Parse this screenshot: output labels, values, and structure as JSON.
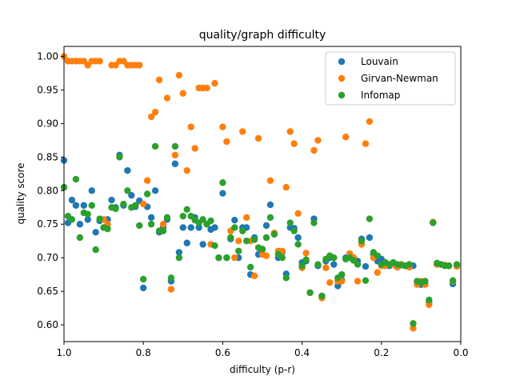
{
  "chart_data": {
    "type": "scatter",
    "title": "quality/graph difficulty",
    "xlabel": "difficulty (p-r)",
    "ylabel": "quality score",
    "xlim": [
      1.0,
      0.0
    ],
    "ylim": [
      0.575,
      1.015
    ],
    "x_ticks": [
      "1.0",
      "0.8",
      "0.6",
      "0.4",
      "0.2",
      "0.0"
    ],
    "x_tick_values": [
      1.0,
      0.8,
      0.6,
      0.4,
      0.2,
      0.0
    ],
    "y_ticks": [
      "0.60",
      "0.65",
      "0.70",
      "0.75",
      "0.80",
      "0.85",
      "0.90",
      "0.95",
      "1.00"
    ],
    "y_tick_values": [
      0.6,
      0.65,
      0.7,
      0.75,
      0.8,
      0.85,
      0.9,
      0.95,
      1.0
    ],
    "grid": false,
    "legend_position": "top-right",
    "series": [
      {
        "name": "Louvain",
        "color": "#1f77b4",
        "points": [
          [
            1.0,
            0.845
          ],
          [
            0.99,
            0.752
          ],
          [
            0.98,
            0.786
          ],
          [
            0.97,
            0.778
          ],
          [
            0.96,
            0.75
          ],
          [
            0.95,
            0.778
          ],
          [
            0.94,
            0.757
          ],
          [
            0.93,
            0.8
          ],
          [
            0.92,
            0.738
          ],
          [
            0.91,
            0.755
          ],
          [
            0.9,
            0.745
          ],
          [
            0.89,
            0.757
          ],
          [
            0.88,
            0.786
          ],
          [
            0.87,
            0.775
          ],
          [
            0.86,
            0.853
          ],
          [
            0.85,
            0.778
          ],
          [
            0.84,
            0.83
          ],
          [
            0.83,
            0.793
          ],
          [
            0.82,
            0.776
          ],
          [
            0.81,
            0.785
          ],
          [
            0.8,
            0.655
          ],
          [
            0.79,
            0.776
          ],
          [
            0.78,
            0.76
          ],
          [
            0.77,
            0.8
          ],
          [
            0.76,
            0.738
          ],
          [
            0.75,
            0.745
          ],
          [
            0.74,
            0.757
          ],
          [
            0.73,
            0.665
          ],
          [
            0.72,
            0.84
          ],
          [
            0.71,
            0.708
          ],
          [
            0.7,
            0.745
          ],
          [
            0.69,
            0.722
          ],
          [
            0.68,
            0.745
          ],
          [
            0.67,
            0.76
          ],
          [
            0.66,
            0.745
          ],
          [
            0.65,
            0.72
          ],
          [
            0.64,
            0.75
          ],
          [
            0.63,
            0.742
          ],
          [
            0.62,
            0.745
          ],
          [
            0.61,
            0.7
          ],
          [
            0.6,
            0.796
          ],
          [
            0.59,
            0.7
          ],
          [
            0.58,
            0.728
          ],
          [
            0.57,
            0.756
          ],
          [
            0.56,
            0.7
          ],
          [
            0.55,
            0.745
          ],
          [
            0.54,
            0.745
          ],
          [
            0.53,
            0.675
          ],
          [
            0.52,
            0.73
          ],
          [
            0.51,
            0.705
          ],
          [
            0.5,
            0.712
          ],
          [
            0.49,
            0.748
          ],
          [
            0.48,
            0.779
          ],
          [
            0.47,
            0.735
          ],
          [
            0.46,
            0.7
          ],
          [
            0.45,
            0.708
          ],
          [
            0.44,
            0.676
          ],
          [
            0.43,
            0.745
          ],
          [
            0.42,
            0.744
          ],
          [
            0.41,
            0.73
          ],
          [
            0.4,
            0.693
          ],
          [
            0.39,
            0.695
          ],
          [
            0.38,
            0.648
          ],
          [
            0.37,
            0.758
          ],
          [
            0.36,
            0.688
          ],
          [
            0.35,
            0.643
          ],
          [
            0.34,
            0.695
          ],
          [
            0.33,
            0.7
          ],
          [
            0.32,
            0.69
          ],
          [
            0.31,
            0.658
          ],
          [
            0.3,
            0.667
          ],
          [
            0.29,
            0.7
          ],
          [
            0.28,
            0.706
          ],
          [
            0.27,
            0.7
          ],
          [
            0.26,
            0.695
          ],
          [
            0.25,
            0.728
          ],
          [
            0.24,
            0.687
          ],
          [
            0.23,
            0.73
          ],
          [
            0.22,
            0.705
          ],
          [
            0.21,
            0.695
          ],
          [
            0.2,
            0.698
          ],
          [
            0.19,
            0.688
          ],
          [
            0.18,
            0.688
          ],
          [
            0.17,
            0.69
          ],
          [
            0.16,
            0.686
          ],
          [
            0.15,
            0.69
          ],
          [
            0.14,
            0.688
          ],
          [
            0.13,
            0.686
          ],
          [
            0.12,
            0.688
          ],
          [
            0.11,
            0.665
          ],
          [
            0.1,
            0.66
          ],
          [
            0.09,
            0.665
          ],
          [
            0.08,
            0.633
          ],
          [
            0.07,
            0.753
          ],
          [
            0.06,
            0.69
          ],
          [
            0.05,
            0.69
          ],
          [
            0.04,
            0.689
          ],
          [
            0.03,
            0.688
          ],
          [
            0.02,
            0.661
          ],
          [
            0.01,
            0.688
          ]
        ]
      },
      {
        "name": "Girvan-Newman",
        "color": "#ff7f0e",
        "points": [
          [
            1.0,
            1.0
          ],
          [
            0.99,
            0.993
          ],
          [
            0.98,
            0.993
          ],
          [
            0.97,
            0.993
          ],
          [
            0.96,
            0.993
          ],
          [
            0.95,
            0.993
          ],
          [
            0.94,
            0.987
          ],
          [
            0.93,
            0.993
          ],
          [
            0.92,
            0.993
          ],
          [
            0.91,
            0.993
          ],
          [
            0.9,
            0.757
          ],
          [
            0.89,
            0.75
          ],
          [
            0.88,
            0.987
          ],
          [
            0.87,
            0.987
          ],
          [
            0.86,
            0.993
          ],
          [
            0.85,
            0.993
          ],
          [
            0.84,
            0.987
          ],
          [
            0.83,
            0.987
          ],
          [
            0.82,
            0.987
          ],
          [
            0.81,
            0.987
          ],
          [
            0.8,
            0.78
          ],
          [
            0.79,
            0.815
          ],
          [
            0.78,
            0.91
          ],
          [
            0.77,
            0.917
          ],
          [
            0.76,
            0.965
          ],
          [
            0.75,
            0.75
          ],
          [
            0.74,
            0.938
          ],
          [
            0.73,
            0.653
          ],
          [
            0.72,
            0.853
          ],
          [
            0.71,
            0.972
          ],
          [
            0.7,
            0.945
          ],
          [
            0.69,
            0.83
          ],
          [
            0.68,
            0.895
          ],
          [
            0.67,
            0.863
          ],
          [
            0.66,
            0.953
          ],
          [
            0.65,
            0.953
          ],
          [
            0.64,
            0.953
          ],
          [
            0.63,
            0.72
          ],
          [
            0.62,
            0.96
          ],
          [
            0.61,
            0.7
          ],
          [
            0.6,
            0.895
          ],
          [
            0.59,
            0.873
          ],
          [
            0.58,
            0.74
          ],
          [
            0.57,
            0.7
          ],
          [
            0.56,
            0.725
          ],
          [
            0.55,
            0.888
          ],
          [
            0.54,
            0.76
          ],
          [
            0.53,
            0.725
          ],
          [
            0.52,
            0.673
          ],
          [
            0.51,
            0.878
          ],
          [
            0.5,
            0.705
          ],
          [
            0.49,
            0.703
          ],
          [
            0.48,
            0.815
          ],
          [
            0.47,
            0.737
          ],
          [
            0.46,
            0.71
          ],
          [
            0.45,
            0.71
          ],
          [
            0.44,
            0.805
          ],
          [
            0.43,
            0.888
          ],
          [
            0.42,
            0.87
          ],
          [
            0.41,
            0.766
          ],
          [
            0.4,
            0.685
          ],
          [
            0.39,
            0.707
          ],
          [
            0.38,
            0.648
          ],
          [
            0.37,
            0.86
          ],
          [
            0.36,
            0.875
          ],
          [
            0.35,
            0.64
          ],
          [
            0.34,
            0.685
          ],
          [
            0.33,
            0.663
          ],
          [
            0.32,
            0.7
          ],
          [
            0.31,
            0.665
          ],
          [
            0.3,
            0.665
          ],
          [
            0.29,
            0.88
          ],
          [
            0.28,
            0.706
          ],
          [
            0.27,
            0.7
          ],
          [
            0.26,
            0.665
          ],
          [
            0.25,
            0.72
          ],
          [
            0.24,
            0.87
          ],
          [
            0.23,
            0.903
          ],
          [
            0.22,
            0.7
          ],
          [
            0.21,
            0.678
          ],
          [
            0.2,
            0.688
          ],
          [
            0.19,
            0.688
          ],
          [
            0.18,
            0.69
          ],
          [
            0.17,
            0.69
          ],
          [
            0.16,
            0.686
          ],
          [
            0.15,
            0.69
          ],
          [
            0.14,
            0.688
          ],
          [
            0.13,
            0.686
          ],
          [
            0.12,
            0.595
          ],
          [
            0.11,
            0.66
          ],
          [
            0.1,
            0.665
          ],
          [
            0.09,
            0.66
          ],
          [
            0.08,
            0.63
          ],
          [
            0.07,
            0.753
          ],
          [
            0.06,
            0.69
          ],
          [
            0.05,
            0.69
          ],
          [
            0.04,
            0.689
          ],
          [
            0.03,
            0.688
          ],
          [
            0.02,
            0.665
          ],
          [
            0.01,
            0.687
          ]
        ]
      },
      {
        "name": "Infomap",
        "color": "#2ca02c",
        "points": [
          [
            1.0,
            0.805
          ],
          [
            0.99,
            0.762
          ],
          [
            0.98,
            0.757
          ],
          [
            0.97,
            0.817
          ],
          [
            0.96,
            0.73
          ],
          [
            0.95,
            0.767
          ],
          [
            0.94,
            0.765
          ],
          [
            0.93,
            0.778
          ],
          [
            0.92,
            0.712
          ],
          [
            0.91,
            0.758
          ],
          [
            0.9,
            0.745
          ],
          [
            0.89,
            0.743
          ],
          [
            0.88,
            0.775
          ],
          [
            0.87,
            0.773
          ],
          [
            0.86,
            0.85
          ],
          [
            0.85,
            0.78
          ],
          [
            0.84,
            0.8
          ],
          [
            0.83,
            0.775
          ],
          [
            0.82,
            0.778
          ],
          [
            0.81,
            0.748
          ],
          [
            0.8,
            0.668
          ],
          [
            0.79,
            0.795
          ],
          [
            0.78,
            0.75
          ],
          [
            0.77,
            0.866
          ],
          [
            0.76,
            0.74
          ],
          [
            0.75,
            0.74
          ],
          [
            0.74,
            0.76
          ],
          [
            0.73,
            0.67
          ],
          [
            0.72,
            0.866
          ],
          [
            0.71,
            0.7
          ],
          [
            0.7,
            0.762
          ],
          [
            0.69,
            0.772
          ],
          [
            0.68,
            0.762
          ],
          [
            0.67,
            0.756
          ],
          [
            0.66,
            0.752
          ],
          [
            0.65,
            0.757
          ],
          [
            0.64,
            0.75
          ],
          [
            0.63,
            0.755
          ],
          [
            0.62,
            0.718
          ],
          [
            0.61,
            0.7
          ],
          [
            0.6,
            0.812
          ],
          [
            0.59,
            0.7
          ],
          [
            0.58,
            0.73
          ],
          [
            0.57,
            0.745
          ],
          [
            0.56,
            0.71
          ],
          [
            0.55,
            0.74
          ],
          [
            0.54,
            0.725
          ],
          [
            0.53,
            0.686
          ],
          [
            0.52,
            0.727
          ],
          [
            0.51,
            0.715
          ],
          [
            0.5,
            0.713
          ],
          [
            0.49,
            0.73
          ],
          [
            0.48,
            0.76
          ],
          [
            0.47,
            0.735
          ],
          [
            0.46,
            0.705
          ],
          [
            0.45,
            0.7
          ],
          [
            0.44,
            0.67
          ],
          [
            0.43,
            0.752
          ],
          [
            0.42,
            0.74
          ],
          [
            0.41,
            0.72
          ],
          [
            0.4,
            0.688
          ],
          [
            0.39,
            0.697
          ],
          [
            0.38,
            0.648
          ],
          [
            0.37,
            0.752
          ],
          [
            0.36,
            0.69
          ],
          [
            0.35,
            0.643
          ],
          [
            0.34,
            0.698
          ],
          [
            0.33,
            0.703
          ],
          [
            0.32,
            0.7
          ],
          [
            0.31,
            0.67
          ],
          [
            0.3,
            0.675
          ],
          [
            0.29,
            0.698
          ],
          [
            0.28,
            0.7
          ],
          [
            0.27,
            0.696
          ],
          [
            0.26,
            0.69
          ],
          [
            0.25,
            0.725
          ],
          [
            0.24,
            0.666
          ],
          [
            0.23,
            0.758
          ],
          [
            0.22,
            0.708
          ],
          [
            0.21,
            0.703
          ],
          [
            0.2,
            0.69
          ],
          [
            0.19,
            0.693
          ],
          [
            0.18,
            0.69
          ],
          [
            0.17,
            0.693
          ],
          [
            0.16,
            0.69
          ],
          [
            0.15,
            0.689
          ],
          [
            0.14,
            0.688
          ],
          [
            0.13,
            0.69
          ],
          [
            0.12,
            0.602
          ],
          [
            0.11,
            0.665
          ],
          [
            0.1,
            0.663
          ],
          [
            0.09,
            0.665
          ],
          [
            0.08,
            0.637
          ],
          [
            0.07,
            0.752
          ],
          [
            0.06,
            0.692
          ],
          [
            0.05,
            0.69
          ],
          [
            0.04,
            0.688
          ],
          [
            0.03,
            0.688
          ],
          [
            0.02,
            0.666
          ],
          [
            0.01,
            0.69
          ]
        ]
      }
    ]
  }
}
